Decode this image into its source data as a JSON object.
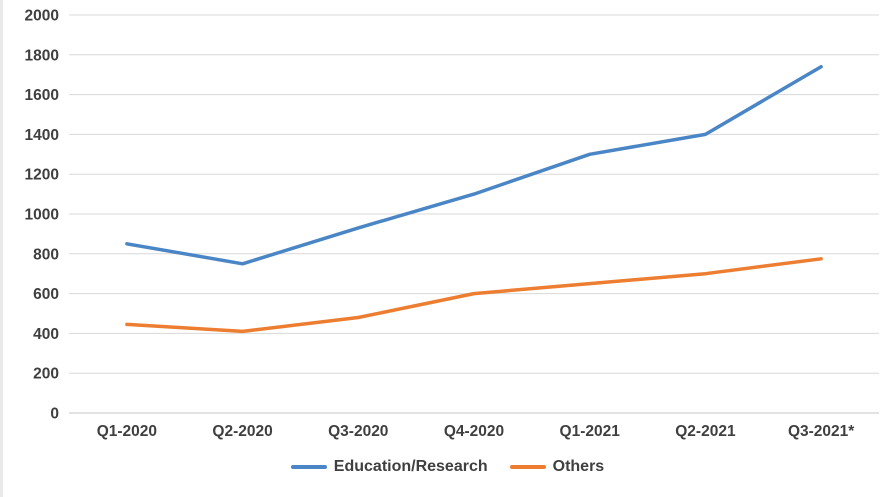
{
  "chart_data": {
    "type": "line",
    "title": "",
    "xlabel": "",
    "ylabel": "",
    "categories": [
      "Q1-2020",
      "Q2-2020",
      "Q3-2020",
      "Q4-2020",
      "Q1-2021",
      "Q2-2021",
      "Q3-2021*"
    ],
    "series": [
      {
        "name": "Education/Research",
        "color": "#4A86C6",
        "values": [
          850,
          750,
          930,
          1100,
          1300,
          1400,
          1740
        ]
      },
      {
        "name": "Others",
        "color": "#ED7D31",
        "values": [
          445,
          410,
          480,
          600,
          650,
          700,
          775
        ]
      }
    ],
    "y_axis": {
      "min": 0,
      "max": 2000,
      "step": 200
    },
    "y_tick_labels": [
      "0",
      "200",
      "400",
      "600",
      "800",
      "1000",
      "1200",
      "1400",
      "1600",
      "1800",
      "2000"
    ],
    "grid": true,
    "legend_position": "bottom",
    "colors": {
      "gridline": "#d8d8d8",
      "axis_line": "#c6c6c6",
      "tick_text": "#3f3f3f"
    }
  }
}
